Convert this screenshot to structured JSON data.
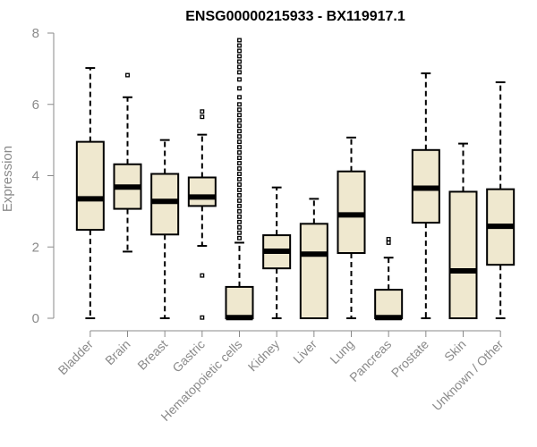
{
  "chart_data": {
    "type": "boxplot",
    "title": "ENSG00000215933 - BX119917.1",
    "xlabel": "",
    "ylabel": "Expression",
    "ylim": [
      0,
      8
    ],
    "yticks": [
      0,
      2,
      4,
      6,
      8
    ],
    "colors": {
      "box_fill": "#efe8cf",
      "stroke": "#000000",
      "axis": "#8a8a8a"
    },
    "categories": [
      "Bladder",
      "Brain",
      "Breast",
      "Gastric",
      "Hematopoietic cells",
      "Kidney",
      "Liver",
      "Lung",
      "Pancreas",
      "Prostate",
      "Skin",
      "Unknown / Other"
    ],
    "boxes": [
      {
        "name": "Bladder",
        "min": 0.0,
        "q1": 2.48,
        "median": 3.35,
        "q3": 4.95,
        "max": 7.02,
        "outliers": []
      },
      {
        "name": "Brain",
        "min": 1.87,
        "q1": 3.07,
        "median": 3.68,
        "q3": 4.32,
        "max": 6.2,
        "outliers": [
          6.82
        ]
      },
      {
        "name": "Breast",
        "min": 0.0,
        "q1": 2.35,
        "median": 3.28,
        "q3": 4.05,
        "max": 5.0,
        "outliers": []
      },
      {
        "name": "Gastric",
        "min": 2.03,
        "q1": 3.15,
        "median": 3.4,
        "q3": 3.95,
        "max": 5.15,
        "outliers": [
          0.02,
          1.2,
          5.65,
          5.8
        ]
      },
      {
        "name": "Hematopoietic cells",
        "min": 0.0,
        "q1": 0.0,
        "median": 0.02,
        "q3": 0.88,
        "max": 2.12,
        "outliers": [
          2.25,
          2.4,
          2.55,
          2.7,
          2.85,
          3.0,
          3.15,
          3.3,
          3.45,
          3.6,
          3.75,
          3.9,
          4.05,
          4.2,
          4.35,
          4.5,
          4.65,
          4.8,
          4.95,
          5.1,
          5.25,
          5.4,
          5.55,
          5.7,
          5.85,
          6.0,
          6.2,
          6.45,
          6.7,
          6.9,
          7.05,
          7.2,
          7.35,
          7.5,
          7.65,
          7.8
        ]
      },
      {
        "name": "Kidney",
        "min": 0.0,
        "q1": 1.4,
        "median": 1.88,
        "q3": 2.33,
        "max": 3.67,
        "outliers": []
      },
      {
        "name": "Liver",
        "min": 0.0,
        "q1": 0.0,
        "median": 1.8,
        "q3": 2.65,
        "max": 3.35,
        "outliers": []
      },
      {
        "name": "Lung",
        "min": 0.0,
        "q1": 1.83,
        "median": 2.9,
        "q3": 4.12,
        "max": 5.07,
        "outliers": []
      },
      {
        "name": "Pancreas",
        "min": 0.0,
        "q1": 0.0,
        "median": 0.02,
        "q3": 0.8,
        "max": 1.7,
        "outliers": [
          2.12,
          2.22
        ]
      },
      {
        "name": "Prostate",
        "min": 0.0,
        "q1": 2.68,
        "median": 3.65,
        "q3": 4.72,
        "max": 6.87,
        "outliers": []
      },
      {
        "name": "Skin",
        "min": 0.0,
        "q1": 0.0,
        "median": 1.33,
        "q3": 3.55,
        "max": 4.9,
        "outliers": []
      },
      {
        "name": "Unknown / Other",
        "min": 0.0,
        "q1": 1.5,
        "median": 2.58,
        "q3": 3.62,
        "max": 6.62,
        "outliers": []
      }
    ]
  }
}
